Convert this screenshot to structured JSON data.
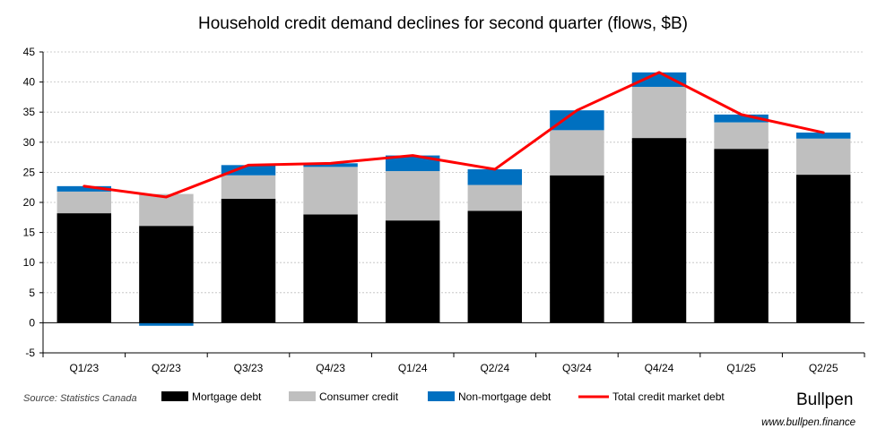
{
  "chart_data": {
    "type": "bar",
    "stacked": true,
    "title": "Household credit demand declines for second quarter (flows, $B)",
    "categories": [
      "Q1/23",
      "Q2/23",
      "Q3/23",
      "Q4/23",
      "Q1/24",
      "Q2/24",
      "Q3/24",
      "Q4/24",
      "Q1/25",
      "Q2/25"
    ],
    "series": [
      {
        "name": "Mortgage debt",
        "kind": "bar",
        "color": "#000000",
        "values": [
          18.2,
          16.1,
          20.6,
          18.0,
          17.0,
          18.6,
          24.5,
          30.7,
          28.9,
          24.6
        ]
      },
      {
        "name": "Consumer credit",
        "kind": "bar",
        "color": "#bfbfbf",
        "values": [
          3.6,
          5.3,
          3.9,
          7.9,
          8.2,
          4.3,
          7.5,
          8.5,
          4.4,
          6.0
        ]
      },
      {
        "name": "Non-mortgage debt",
        "kind": "bar",
        "color": "#0070c0",
        "values": [
          0.9,
          -0.5,
          1.7,
          0.6,
          2.6,
          2.6,
          3.3,
          2.4,
          1.3,
          1.0
        ]
      },
      {
        "name": "Total credit market debt",
        "kind": "line",
        "color": "#ff0000",
        "values": [
          22.7,
          20.9,
          26.2,
          26.5,
          27.8,
          25.5,
          35.3,
          41.6,
          34.6,
          31.6
        ]
      }
    ],
    "ylim": [
      -5,
      45
    ],
    "yticks": [
      -5,
      0,
      5,
      10,
      15,
      20,
      25,
      30,
      35,
      40,
      45
    ],
    "grid": true,
    "legend": "bottom"
  },
  "footer": {
    "source": "Source: Statistics Canada",
    "brand": "Bullpen",
    "url": "www.bullpen.finance"
  }
}
